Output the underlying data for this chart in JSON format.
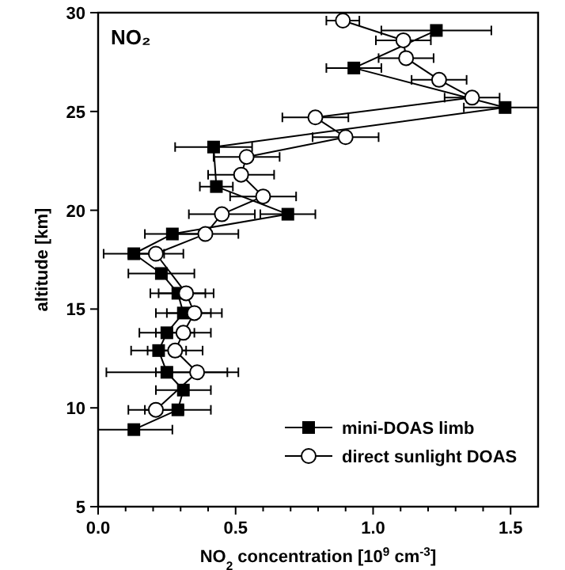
{
  "chart_data": {
    "type": "line",
    "title": "NO₂",
    "xlabel": "NO$_{2}$ concentration [10$^{9}$ cm$^{-3}$]",
    "ylabel": "altitude [km]",
    "xlim": [
      0,
      1.6
    ],
    "ylim": [
      5,
      30
    ],
    "xticks": [
      {
        "value": 0,
        "label": "0.0"
      },
      {
        "value": 0.1,
        "label": null
      },
      {
        "value": 0.2,
        "label": null
      },
      {
        "value": 0.3,
        "label": null
      },
      {
        "value": 0.4,
        "label": null
      },
      {
        "value": 0.5,
        "label": "0.5"
      },
      {
        "value": 0.6,
        "label": null
      },
      {
        "value": 0.7,
        "label": null
      },
      {
        "value": 0.8,
        "label": null
      },
      {
        "value": 0.9,
        "label": null
      },
      {
        "value": 1,
        "label": "1.0"
      },
      {
        "value": 1.1,
        "label": null
      },
      {
        "value": 1.2,
        "label": null
      },
      {
        "value": 1.3,
        "label": null
      },
      {
        "value": 1.4,
        "label": null
      },
      {
        "value": 1.5,
        "label": "1.5"
      }
    ],
    "yticks": [
      5,
      10,
      15,
      20,
      25,
      30
    ],
    "legend": "bottom right",
    "grid": false,
    "series": [
      {
        "name": "mini-DOAS limb",
        "color": "#000000",
        "marker": "square",
        "x": [
          1.23,
          0.93,
          1.48,
          0.42,
          0.43,
          0.69,
          0.27,
          0.13,
          0.23,
          0.29,
          0.31,
          0.25,
          0.22,
          0.25,
          0.31,
          0.29,
          0.13
        ],
        "values": [
          29.1,
          27.2,
          25.2,
          23.2,
          21.2,
          19.8,
          18.8,
          17.8,
          16.8,
          15.8,
          14.8,
          13.8,
          12.9,
          11.8,
          10.9,
          9.9,
          8.9
        ],
        "xerrors": [
          0.2,
          0.1,
          0.15,
          0.14,
          0.06,
          0.1,
          0.1,
          0.11,
          0.12,
          0.1,
          0.1,
          0.1,
          0.1,
          0.22,
          0.1,
          0.12,
          0.14
        ]
      },
      {
        "name": "direct sunlight DOAS",
        "color": "#000000",
        "marker": "circle",
        "x": [
          0.89,
          1.11,
          1.12,
          1.24,
          1.36,
          0.79,
          0.9,
          0.54,
          0.52,
          0.6,
          0.45,
          0.39,
          0.21,
          0.32,
          0.35,
          0.31,
          0.28,
          0.36,
          0.21
        ],
        "values": [
          29.6,
          28.6,
          27.7,
          26.6,
          25.7,
          24.7,
          23.7,
          22.7,
          21.8,
          20.7,
          19.8,
          18.8,
          17.8,
          15.8,
          14.8,
          13.8,
          12.9,
          11.8,
          9.9
        ],
        "xerrors": [
          0.06,
          0.1,
          0.1,
          0.1,
          0.1,
          0.12,
          0.12,
          0.12,
          0.12,
          0.12,
          0.12,
          0.12,
          0.1,
          0.1,
          0.1,
          0.1,
          0.1,
          0.15,
          0.1
        ]
      }
    ]
  }
}
